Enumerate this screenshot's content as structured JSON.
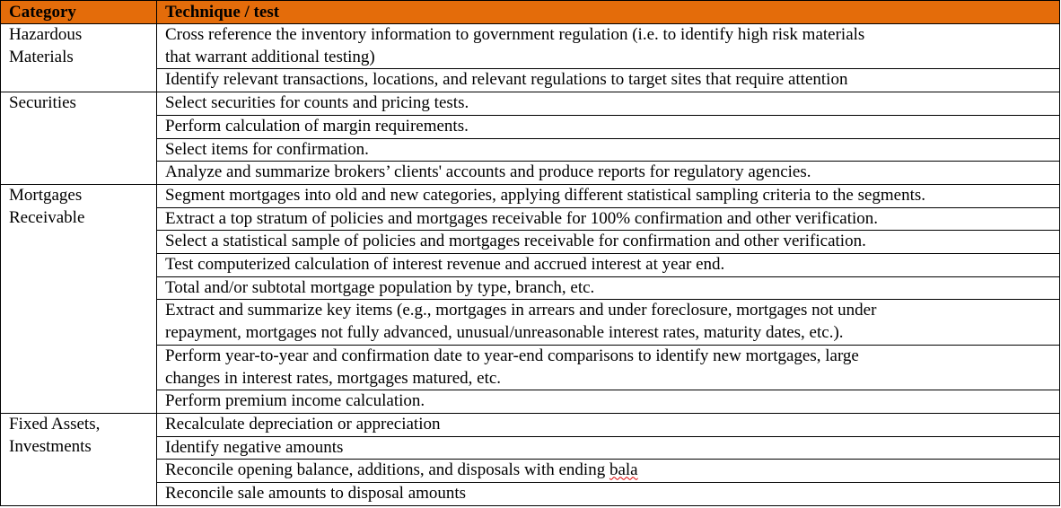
{
  "header": [
    "Category",
    "Technique / test"
  ],
  "groups": [
    {
      "category": [
        "Hazardous",
        "Materials"
      ],
      "techniques": [
        [
          "Cross reference the inventory information to government regulation (i.e. to identify high risk materials",
          "that warrant additional testing)"
        ],
        [
          "Identify relevant transactions, locations, and relevant regulations to target sites that require attention"
        ]
      ]
    },
    {
      "category": [
        "Securities"
      ],
      "techniques": [
        [
          "Select securities for counts and pricing tests."
        ],
        [
          "Perform calculation of margin requirements."
        ],
        [
          "Select items for confirmation."
        ],
        [
          "Analyze and summarize brokers’ clients' accounts and produce reports for regulatory agencies."
        ]
      ]
    },
    {
      "category": [
        "Mortgages",
        "Receivable"
      ],
      "techniques": [
        [
          "Segment mortgages into old and new categories, applying different statistical sampling criteria to the segments."
        ],
        [
          "Extract a top stratum of policies and mortgages receivable for 100% confirmation and other verification."
        ],
        [
          "Select a statistical sample of policies and mortgages receivable for confirmation and other verification."
        ],
        [
          "Test computerized calculation of interest revenue and accrued interest at year end."
        ],
        [
          "Total and/or subtotal mortgage population by type, branch, etc."
        ],
        [
          "Extract and summarize key items (e.g., mortgages in arrears and under foreclosure, mortgages not under",
          "repayment, mortgages not fully advanced, unusual/unreasonable interest rates, maturity dates, etc.)."
        ],
        [
          "Perform year-to-year and confirmation date to year-end comparisons to identify new mortgages, large",
          "changes in interest rates, mortgages matured, etc."
        ],
        [
          "Perform premium income calculation."
        ]
      ]
    },
    {
      "category": [
        "Fixed Assets,",
        "Investments"
      ],
      "techniques": [
        [
          "Recalculate depreciation or appreciation"
        ],
        [
          "Identify negative amounts"
        ],
        [
          "Reconcile opening balance, additions, and disposals with ending bala"
        ],
        [
          "Reconcile sale amounts to disposal amounts"
        ]
      ]
    }
  ]
}
